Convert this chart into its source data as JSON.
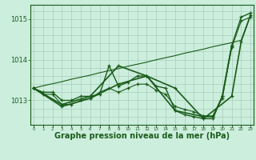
{
  "xlabel": "Graphe pression niveau de la mer (hPa)",
  "background_color": "#cceedd",
  "grid_color": "#aaccbb",
  "line_color": "#1a5c1a",
  "marker_color": "#1a5c1a",
  "series": [
    {
      "x": [
        0,
        1,
        2,
        3,
        4,
        5,
        6,
        7,
        8,
        9,
        10,
        11,
        12,
        13,
        14,
        15,
        16,
        17,
        18,
        19,
        20,
        21,
        22,
        23
      ],
      "y": [
        1013.3,
        1013.36,
        1013.41,
        1013.46,
        1013.52,
        1013.57,
        1013.62,
        1013.68,
        1013.73,
        1013.78,
        1013.84,
        1013.89,
        1013.94,
        1014.0,
        1014.05,
        1014.1,
        1014.16,
        1014.21,
        1014.26,
        1014.32,
        1014.37,
        1014.42,
        1014.48,
        1015.1
      ],
      "marker": null,
      "linewidth": 0.8
    },
    {
      "x": [
        0,
        1,
        2,
        3,
        4,
        5,
        6,
        7,
        8,
        9,
        10,
        11,
        12,
        13,
        14,
        15,
        16,
        17,
        18,
        19,
        20,
        21,
        22,
        23
      ],
      "y": [
        1013.3,
        1013.2,
        1013.2,
        1013.0,
        1013.0,
        1013.1,
        1013.1,
        1013.15,
        1013.85,
        1013.35,
        1013.45,
        1013.6,
        1013.6,
        1013.35,
        1013.3,
        1012.75,
        1012.65,
        1012.6,
        1012.55,
        1012.55,
        1013.1,
        1014.35,
        1015.05,
        1015.15
      ],
      "marker": "+",
      "linewidth": 1.0
    },
    {
      "x": [
        0,
        1,
        2,
        3,
        4,
        5,
        6,
        7,
        8,
        9,
        10,
        11,
        12,
        13,
        14,
        15,
        16,
        17,
        18,
        19,
        20,
        21,
        22,
        23
      ],
      "y": [
        1013.3,
        1013.15,
        1013.15,
        1012.9,
        1012.9,
        1013.0,
        1013.05,
        1013.2,
        1013.3,
        1013.2,
        1013.3,
        1013.4,
        1013.4,
        1013.25,
        1013.15,
        1012.85,
        1012.78,
        1012.72,
        1012.62,
        1012.62,
        1013.05,
        1014.3,
        1014.95,
        1015.05
      ],
      "marker": "+",
      "linewidth": 0.8
    },
    {
      "x": [
        0,
        3,
        6,
        9,
        12,
        15,
        18,
        21,
        22,
        23
      ],
      "y": [
        1013.3,
        1012.9,
        1013.1,
        1013.85,
        1013.6,
        1013.3,
        1012.55,
        1013.1,
        1014.45,
        1015.1
      ],
      "marker": "+",
      "linewidth": 1.2
    },
    {
      "x": [
        0,
        3,
        6,
        9,
        12,
        15,
        18,
        19,
        20,
        21
      ],
      "y": [
        1013.3,
        1012.85,
        1013.05,
        1013.4,
        1013.6,
        1012.75,
        1012.6,
        1012.6,
        1013.1,
        1014.35
      ],
      "marker": "+",
      "linewidth": 1.2
    }
  ],
  "ylim": [
    1012.4,
    1015.35
  ],
  "xlim": [
    -0.3,
    23.3
  ],
  "yticks": [
    1013,
    1014,
    1015
  ],
  "xticks": [
    0,
    1,
    2,
    3,
    4,
    5,
    6,
    7,
    8,
    9,
    10,
    11,
    12,
    13,
    14,
    15,
    16,
    17,
    18,
    19,
    20,
    21,
    22,
    23
  ],
  "xlabel_fontsize": 7,
  "ytick_fontsize": 6,
  "xtick_fontsize": 4
}
